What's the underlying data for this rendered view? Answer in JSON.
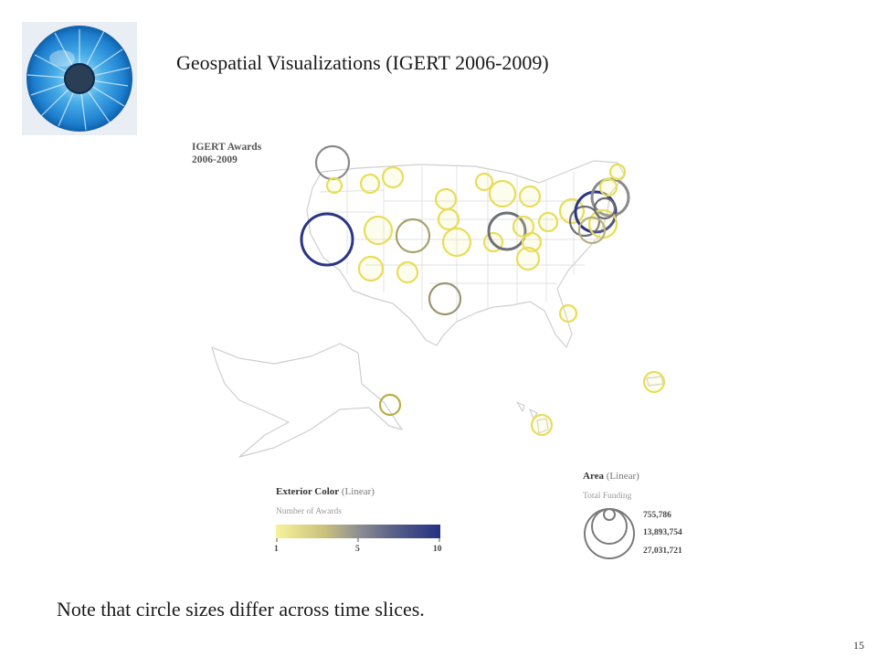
{
  "slide": {
    "title": "Geospatial Visualizations (IGERT 2006-2009)",
    "footnote": "Note that circle sizes differ across time slices.",
    "page_number": "15"
  },
  "map": {
    "title_line1": "IGERT Awards",
    "title_line2": "2006-2009"
  },
  "legend_color": {
    "heading": "Exterior Color",
    "heading_paren": "(Linear)",
    "subtitle": "Number of Awards",
    "ticks": [
      "1",
      "5",
      "10"
    ],
    "colors": {
      "low": "#f6f39b",
      "mid": "#8e8f92",
      "high": "#253185"
    }
  },
  "legend_area": {
    "heading": "Area",
    "heading_paren": "(Linear)",
    "subtitle": "Total Funding",
    "values": [
      "755,786",
      "13,893,754",
      "27,031,721"
    ]
  }
}
